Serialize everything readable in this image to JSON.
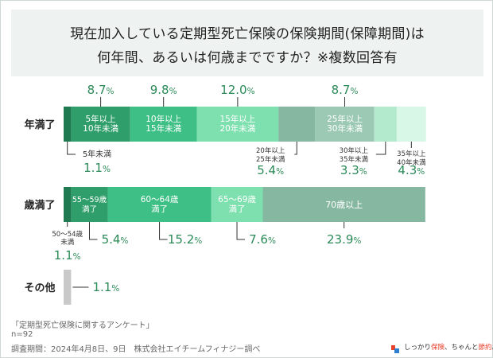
{
  "title": {
    "line1": "現在加入している定期型死亡保険の保険期間(保障期間)は",
    "line2": "何年間、あるいは何歳までですか？※複数回答有"
  },
  "footer": {
    "source": "「定期型死亡保険に関するアンケート」",
    "n": "n=92",
    "period": "調査期間：2024年4月8日、9日　株式会社エイチームフィナジー調べ"
  },
  "brand": {
    "text_prefix": "しっかり",
    "text_accent1": "保険",
    "text_mid": "、ちゃんと",
    "text_accent2": "節約",
    "text_suffix": "。",
    "accent_color": "#e8412c"
  },
  "chart_data": {
    "type": "stacked-bar-horizontal",
    "unit": "%",
    "rows": [
      {
        "label": "年満了",
        "segments": [
          {
            "label": "5年未満",
            "value": 1.1,
            "color": "#1f7a52"
          },
          {
            "label": "5年以上\n10年未満",
            "value": 8.7,
            "color": "#2f9e6a"
          },
          {
            "label": "10年以上\n15年未満",
            "value": 9.8,
            "color": "#3dbf85"
          },
          {
            "label": "15年以上\n20年未満",
            "value": 12.0,
            "color": "#7ee0ae"
          },
          {
            "label": "20年以上\n25年未満",
            "value": 5.4,
            "color": "#86b8a1"
          },
          {
            "label": "25年以上\n30年未満",
            "value": 8.7,
            "color": "#9cc9b4"
          },
          {
            "label": "30年以上\n35年未満",
            "value": 3.3,
            "color": "#b3e9cd"
          },
          {
            "label": "35年以上\n40年未満",
            "value": 4.3,
            "color": "#d8f7e7"
          }
        ]
      },
      {
        "label": "歳満了",
        "segments": [
          {
            "label": "50～54歳\n未満",
            "value": 1.1,
            "color": "#1f7a52"
          },
          {
            "label": "55～59歳\n満了",
            "value": 5.4,
            "color": "#2f9e6a"
          },
          {
            "label": "60～64歳\n満了",
            "value": 15.2,
            "color": "#3dbf85"
          },
          {
            "label": "65～69歳\n満了",
            "value": 7.6,
            "color": "#7ee0ae"
          },
          {
            "label": "70歳以上",
            "value": 23.9,
            "color": "#86b8a1"
          }
        ]
      },
      {
        "label": "その他",
        "segments": [
          {
            "label": "",
            "value": 1.1,
            "color": "#c9c9c9"
          }
        ]
      }
    ]
  }
}
